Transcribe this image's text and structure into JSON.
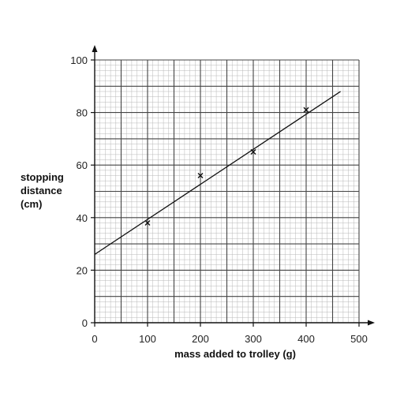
{
  "chart_data": {
    "type": "scatter",
    "xlabel": "mass added to trolley (g)",
    "ylabel_lines": [
      "stopping",
      "distance",
      "(cm)"
    ],
    "xlim": [
      0,
      500
    ],
    "ylim": [
      0,
      100
    ],
    "x_ticks": [
      0,
      100,
      200,
      300,
      400,
      500
    ],
    "y_ticks": [
      0,
      20,
      40,
      60,
      80,
      100
    ],
    "grid": true,
    "points": [
      {
        "x": 100,
        "y": 38
      },
      {
        "x": 200,
        "y": 56
      },
      {
        "x": 300,
        "y": 65
      },
      {
        "x": 400,
        "y": 81
      }
    ],
    "best_fit_line": {
      "x": [
        0,
        465
      ],
      "y": [
        26,
        88
      ]
    },
    "marker": "x"
  }
}
